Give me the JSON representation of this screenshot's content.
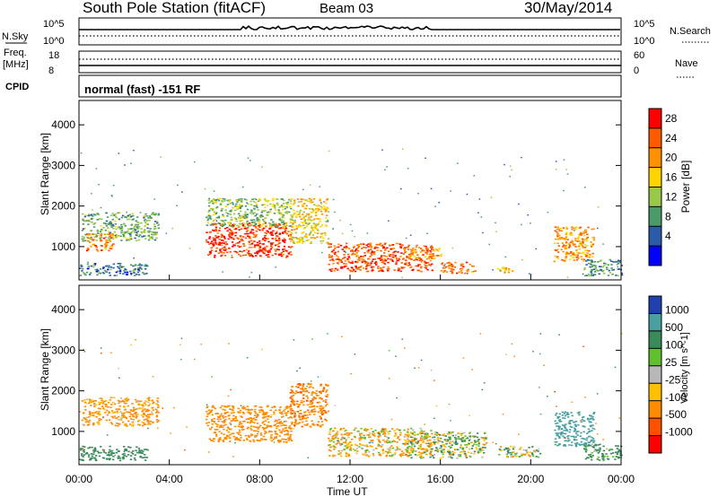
{
  "header": {
    "title": "South Pole Station (fitACF)",
    "beam": "Beam 03",
    "date": "30/May/2014"
  },
  "top_panels": {
    "nsky_label": "N.Sky",
    "nsearch_label": "N.Search",
    "nsky_ticks": [
      "10^5",
      "10^0"
    ],
    "freq_label": "Freq.",
    "freq_unit": "[MHz]",
    "freq_ticks": [
      "18",
      "8"
    ],
    "nave_label": "Nave",
    "nave_ticks": [
      "60",
      "0"
    ],
    "cpid_label": "CPID",
    "cpid_text": "normal (fast) -151 RF"
  },
  "chart_data": [
    {
      "type": "heatmap",
      "title": "",
      "quantity": "Power",
      "colorbar_label": "Power [dB]",
      "colorbar_ticks": [
        "28",
        "24",
        "20",
        "16",
        "12",
        "8",
        "4"
      ],
      "colorbar_colors": [
        "#ff0000",
        "#ff5a00",
        "#ff9000",
        "#ffd400",
        "#9ac848",
        "#4a9a6a",
        "#2a5aa8",
        "#0000ff"
      ],
      "xlabel": "Time UT",
      "ylabel": "Slant Range [km]",
      "xlim": [
        0,
        24
      ],
      "ylim": [
        180,
        4600
      ],
      "yticks": [
        "4000",
        "3000",
        "2000",
        "1000"
      ],
      "regions": [
        {
          "t0": 0.1,
          "t1": 3.5,
          "r0": 1150,
          "r1": 1850,
          "level": 10
        },
        {
          "t0": 0.3,
          "t1": 1.5,
          "r0": 900,
          "r1": 1350,
          "level": 22
        },
        {
          "t0": 0.0,
          "t1": 3.0,
          "r0": 300,
          "r1": 600,
          "level": 6
        },
        {
          "t0": 5.6,
          "t1": 9.4,
          "r0": 750,
          "r1": 1600,
          "level": 26
        },
        {
          "t0": 5.6,
          "t1": 9.4,
          "r0": 1500,
          "r1": 2200,
          "level": 11
        },
        {
          "t0": 9.3,
          "t1": 11.0,
          "r0": 1100,
          "r1": 2200,
          "level": 16
        },
        {
          "t0": 11.0,
          "t1": 15.6,
          "r0": 400,
          "r1": 1100,
          "level": 24
        },
        {
          "t0": 14.5,
          "t1": 16.0,
          "r0": 700,
          "r1": 1000,
          "level": 20
        },
        {
          "t0": 16.0,
          "t1": 17.5,
          "r0": 350,
          "r1": 650,
          "level": 22
        },
        {
          "t0": 18.5,
          "t1": 19.2,
          "r0": 380,
          "r1": 550,
          "level": 18
        },
        {
          "t0": 21.0,
          "t1": 22.8,
          "r0": 650,
          "r1": 1500,
          "level": 20
        },
        {
          "t0": 22.3,
          "t1": 24.0,
          "r0": 300,
          "r1": 700,
          "level": 8
        }
      ]
    },
    {
      "type": "heatmap",
      "title": "",
      "quantity": "Velocity",
      "colorbar_label": "Velocity [m s^-1]",
      "colorbar_ticks": [
        "1000",
        "500",
        "100",
        "25",
        "-25",
        "-100",
        "-500",
        "-1000"
      ],
      "colorbar_colors": [
        "#2040b0",
        "#4aa0a0",
        "#3a8a5a",
        "#60c030",
        "#b8b8b8",
        "#ffc000",
        "#ff8c00",
        "#ff5000",
        "#ff0000"
      ],
      "xlabel": "Time UT",
      "ylabel": "Slant Range [km]",
      "xlim": [
        0,
        24
      ],
      "ylim": [
        180,
        4600
      ],
      "yticks": [
        "4000",
        "3000",
        "2000",
        "1000"
      ],
      "xticks": [
        "00:00",
        "04:00",
        "08:00",
        "12:00",
        "16:00",
        "20:00",
        "00:00"
      ],
      "regions": [
        {
          "t0": 0.1,
          "t1": 3.5,
          "r0": 1150,
          "r1": 1850,
          "level": -200
        },
        {
          "t0": 0.0,
          "t1": 3.0,
          "r0": 300,
          "r1": 650,
          "level": 300
        },
        {
          "t0": 5.6,
          "t1": 9.4,
          "r0": 750,
          "r1": 1650,
          "level": -300
        },
        {
          "t0": 9.3,
          "t1": 11.0,
          "r0": 1100,
          "r1": 2200,
          "level": -400
        },
        {
          "t0": 11.0,
          "t1": 15.6,
          "r0": 400,
          "r1": 1100,
          "level": -80
        },
        {
          "t0": 14.5,
          "t1": 18.0,
          "r0": 350,
          "r1": 1000,
          "level": 60
        },
        {
          "t0": 18.5,
          "t1": 20.5,
          "r0": 380,
          "r1": 650,
          "level": 60
        },
        {
          "t0": 21.0,
          "t1": 22.8,
          "r0": 650,
          "r1": 1500,
          "level": 700
        },
        {
          "t0": 22.3,
          "t1": 24.0,
          "r0": 300,
          "r1": 700,
          "level": 200
        }
      ]
    }
  ]
}
